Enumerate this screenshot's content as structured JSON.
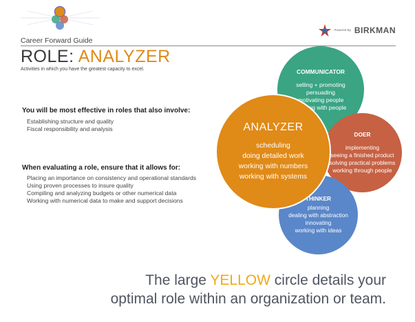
{
  "header": {
    "guide_title": "Career Forward Guide",
    "brand_prefix": "Powered By",
    "brand_name": "BIRKMAN"
  },
  "role": {
    "prefix": "ROLE: ",
    "name": "ANALYZER",
    "subtitle": "Activities in which you have the greatest capacity to excel."
  },
  "sections": [
    {
      "heading": "You will be most effective in roles that also involve:",
      "items": [
        "Establishing structure and quality",
        "Fiscal responsibility and analysis"
      ]
    },
    {
      "heading": "When evaluating a role, ensure that it allows for:",
      "items": [
        "Placing an importance on consistency and operational standards",
        "Using proven processes to insure quality",
        "Compiling and analyzing budgets or other numerical data",
        "Working with numerical data to make and support decisions"
      ]
    }
  ],
  "circles": {
    "communicator": {
      "title": "COMMUNICATOR",
      "color": "#3aa483",
      "lines": [
        "selling + promoting",
        "persuading",
        "motivating people",
        "working with people"
      ]
    },
    "analyzer": {
      "title": "ANALYZER",
      "color": "#e08a17",
      "lines": [
        "scheduling",
        "doing detailed work",
        "working with numbers",
        "working with systems"
      ]
    },
    "doer": {
      "title": "DOER",
      "color": "#c66143",
      "lines": [
        "implementing",
        "seeing a finished product",
        "solving practical problems",
        "working through people"
      ]
    },
    "thinker": {
      "title": "THINKER",
      "color": "#5a87c9",
      "lines": [
        "planning",
        "dealing with abstraction",
        "innovating",
        "working with ideas"
      ]
    }
  },
  "footer": {
    "line1_before": "The large ",
    "line1_highlight": "YELLOW",
    "line1_after": " circle details your",
    "line2": "optimal role within an organization or team."
  },
  "icons": {
    "logo": "birkman-circles-logo-icon",
    "brand": "birkman-star-icon"
  }
}
